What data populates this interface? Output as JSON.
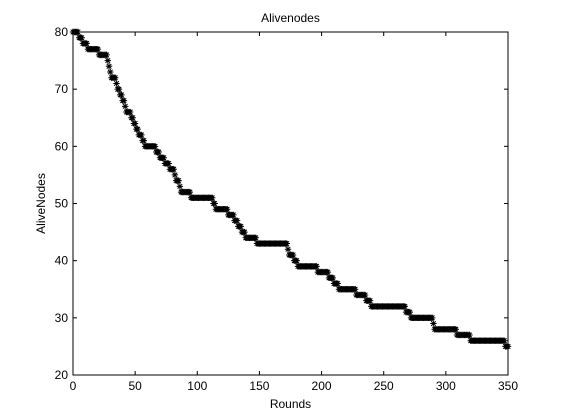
{
  "chart_data": {
    "type": "scatter",
    "title": "Alivenodes",
    "xlabel": "Rounds",
    "ylabel": "AliveNodes",
    "xlim": [
      0,
      350
    ],
    "ylim": [
      20,
      80
    ],
    "xticks": [
      0,
      50,
      100,
      150,
      200,
      250,
      300,
      350
    ],
    "yticks": [
      20,
      30,
      40,
      50,
      60,
      70,
      80
    ],
    "grid": false,
    "marker": "asterisk",
    "colors": {
      "marker": "#000000",
      "axes": "#000000",
      "background": "#ffffff"
    },
    "steps": [
      [
        0,
        80
      ],
      [
        5,
        79
      ],
      [
        8,
        78
      ],
      [
        12,
        77
      ],
      [
        21,
        76
      ],
      [
        28,
        75
      ],
      [
        29,
        74
      ],
      [
        30,
        73
      ],
      [
        31,
        72
      ],
      [
        35,
        71
      ],
      [
        36,
        70
      ],
      [
        38,
        69
      ],
      [
        40,
        68
      ],
      [
        42,
        67
      ],
      [
        43,
        66
      ],
      [
        47,
        65
      ],
      [
        49,
        64
      ],
      [
        51,
        63
      ],
      [
        53,
        62
      ],
      [
        56,
        61
      ],
      [
        58,
        60
      ],
      [
        67,
        59
      ],
      [
        70,
        58
      ],
      [
        74,
        57
      ],
      [
        78,
        56
      ],
      [
        82,
        55
      ],
      [
        83,
        54
      ],
      [
        86,
        53
      ],
      [
        87,
        52
      ],
      [
        95,
        51
      ],
      [
        113,
        50
      ],
      [
        115,
        49
      ],
      [
        125,
        48
      ],
      [
        130,
        47
      ],
      [
        133,
        46
      ],
      [
        136,
        45
      ],
      [
        139,
        44
      ],
      [
        148,
        43
      ],
      [
        173,
        42
      ],
      [
        174,
        41
      ],
      [
        178,
        40
      ],
      [
        181,
        39
      ],
      [
        197,
        38
      ],
      [
        206,
        37
      ],
      [
        210,
        36
      ],
      [
        214,
        35
      ],
      [
        228,
        34
      ],
      [
        236,
        33
      ],
      [
        240,
        32
      ],
      [
        268,
        31
      ],
      [
        272,
        30
      ],
      [
        290,
        29
      ],
      [
        291,
        28
      ],
      [
        309,
        27
      ],
      [
        320,
        26
      ],
      [
        348,
        25
      ]
    ],
    "end_round": 350
  }
}
